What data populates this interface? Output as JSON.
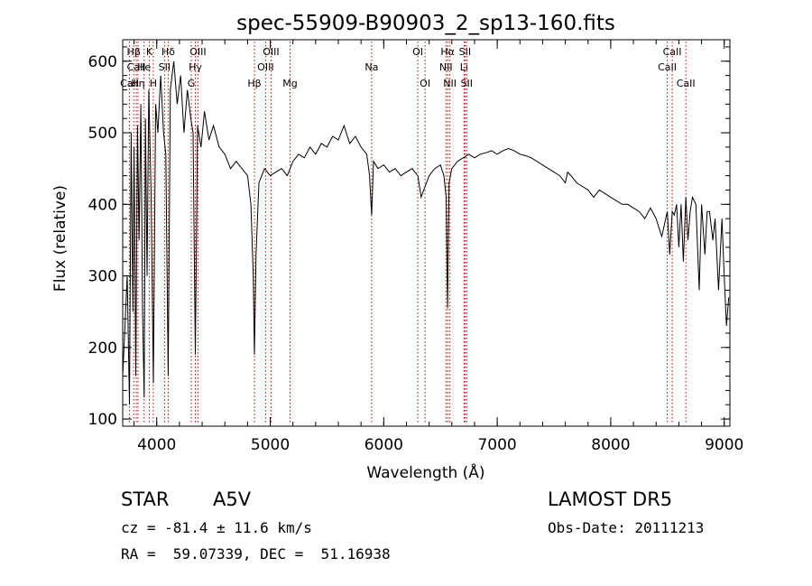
{
  "chart_data": {
    "type": "line",
    "title": "spec-55909-B90903_2_sp13-160.fits",
    "xlabel": "Wavelength (Å)",
    "ylabel": "Flux (relative)",
    "xlim": [
      3700,
      9050
    ],
    "ylim": [
      90,
      630
    ],
    "xticks": [
      4000,
      5000,
      6000,
      7000,
      8000,
      9000
    ],
    "yticks": [
      100,
      200,
      300,
      400,
      500,
      600
    ],
    "grid": false,
    "line_color": "#000000",
    "marker_color": "#cc0000",
    "series": [
      {
        "x": [
          3700,
          3740,
          3760,
          3775,
          3790,
          3800,
          3815,
          3830,
          3845,
          3860,
          3875,
          3889,
          3900,
          3915,
          3930,
          3950,
          3970,
          3990,
          4010,
          4035,
          4060,
          4080,
          4101,
          4120,
          4150,
          4180,
          4210,
          4240,
          4270,
          4300,
          4320,
          4340,
          4360,
          4390,
          4420,
          4460,
          4500,
          4550,
          4600,
          4650,
          4700,
          4750,
          4800,
          4830,
          4850,
          4861,
          4875,
          4900,
          4950,
          5000,
          5050,
          5100,
          5150,
          5200,
          5250,
          5300,
          5350,
          5400,
          5450,
          5500,
          5550,
          5600,
          5650,
          5700,
          5750,
          5800,
          5850,
          5875,
          5893,
          5910,
          5950,
          6000,
          6050,
          6100,
          6150,
          6200,
          6250,
          6300,
          6330,
          6400,
          6450,
          6500,
          6530,
          6550,
          6563,
          6575,
          6600,
          6650,
          6700,
          6750,
          6800,
          6850,
          6900,
          6950,
          7000,
          7050,
          7100,
          7150,
          7200,
          7250,
          7300,
          7350,
          7400,
          7450,
          7500,
          7550,
          7600,
          7620,
          7650,
          7700,
          7750,
          7800,
          7850,
          7900,
          7950,
          8000,
          8050,
          8100,
          8150,
          8200,
          8250,
          8300,
          8350,
          8400,
          8450,
          8498,
          8520,
          8542,
          8560,
          8580,
          8600,
          8620,
          8640,
          8662,
          8680,
          8700,
          8720,
          8750,
          8780,
          8800,
          8830,
          8850,
          8870,
          8900,
          8920,
          8950,
          8980,
          9000,
          9020,
          9040
        ],
        "y": [
          160,
          300,
          120,
          500,
          250,
          480,
          160,
          510,
          350,
          540,
          250,
          130,
          520,
          300,
          560,
          420,
          150,
          540,
          500,
          580,
          500,
          470,
          160,
          560,
          600,
          540,
          580,
          500,
          560,
          520,
          500,
          190,
          510,
          480,
          530,
          490,
          510,
          480,
          470,
          450,
          460,
          450,
          440,
          400,
          300,
          190,
          330,
          430,
          450,
          440,
          445,
          450,
          440,
          460,
          470,
          465,
          480,
          470,
          485,
          480,
          495,
          490,
          510,
          485,
          495,
          480,
          470,
          440,
          385,
          460,
          450,
          455,
          445,
          450,
          440,
          445,
          450,
          440,
          410,
          440,
          450,
          455,
          440,
          410,
          255,
          430,
          450,
          460,
          465,
          470,
          465,
          470,
          472,
          475,
          470,
          475,
          478,
          475,
          470,
          468,
          465,
          460,
          455,
          450,
          445,
          440,
          430,
          445,
          440,
          430,
          425,
          420,
          410,
          420,
          415,
          410,
          405,
          400,
          400,
          395,
          390,
          380,
          395,
          380,
          355,
          390,
          330,
          390,
          385,
          400,
          340,
          400,
          320,
          410,
          350,
          390,
          410,
          400,
          280,
          400,
          330,
          390,
          390,
          350,
          380,
          280,
          380,
          300,
          230,
          270
        ]
      }
    ],
    "line_markers": [
      {
        "label": "Hβ",
        "x": 3797,
        "row": 0
      },
      {
        "label": "K",
        "x": 3934,
        "row": 0
      },
      {
        "label": "Hδ",
        "x": 4101,
        "row": 0
      },
      {
        "label": "OIII",
        "x": 4363,
        "row": 0
      },
      {
        "label": "OIII",
        "x": 5007,
        "row": 0
      },
      {
        "label": "OI",
        "x": 6300,
        "row": 0
      },
      {
        "label": "Hα",
        "x": 6563,
        "row": 0
      },
      {
        "label": "SII",
        "x": 6716,
        "row": 0
      },
      {
        "label": "CaII",
        "x": 8542,
        "row": 0
      },
      {
        "label": "CaII",
        "x": 3820,
        "row": 1
      },
      {
        "label": "He",
        "x": 3889,
        "row": 1
      },
      {
        "label": "SII",
        "x": 4069,
        "row": 1
      },
      {
        "label": "Hγ",
        "x": 4340,
        "row": 1
      },
      {
        "label": "OIII",
        "x": 4959,
        "row": 1
      },
      {
        "label": "Na",
        "x": 5893,
        "row": 1
      },
      {
        "label": "NII",
        "x": 6548,
        "row": 1
      },
      {
        "label": "Li",
        "x": 6708,
        "row": 1
      },
      {
        "label": "CaII",
        "x": 8498,
        "row": 1
      },
      {
        "label": "CaII",
        "x": 3760,
        "row": 2
      },
      {
        "label": "Hη",
        "x": 3835,
        "row": 2
      },
      {
        "label": "H",
        "x": 3969,
        "row": 2
      },
      {
        "label": "G",
        "x": 4304,
        "row": 2
      },
      {
        "label": "Hβ",
        "x": 4861,
        "row": 2
      },
      {
        "label": "Mg",
        "x": 5175,
        "row": 2
      },
      {
        "label": "OI",
        "x": 6364,
        "row": 2
      },
      {
        "label": "NII",
        "x": 6583,
        "row": 2
      },
      {
        "label": "SII",
        "x": 6731,
        "row": 2
      },
      {
        "label": "CaII",
        "x": 8662,
        "row": 2
      }
    ]
  },
  "info": {
    "object_class": "STAR",
    "subclass": "A5V",
    "survey": "LAMOST DR5",
    "velocity": "cz = -81.4 ± 11.6 km/s",
    "obs_date": "Obs-Date: 20111213",
    "coords": "RA =  59.07339, DEC =  51.16938"
  }
}
